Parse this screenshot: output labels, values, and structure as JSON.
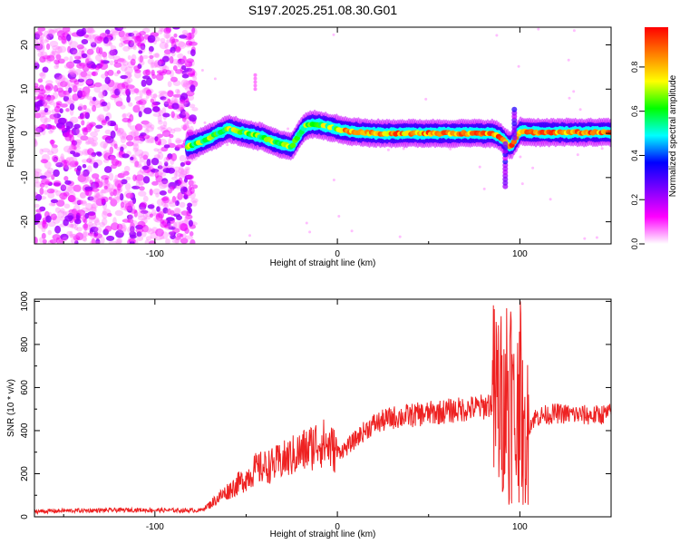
{
  "title": "S197.2025.251.08.30.G01",
  "chart_data": [
    {
      "type": "heatmap",
      "name": "spectrogram",
      "xlabel": "Height of straight line (km)",
      "ylabel": "Frequency (Hz)",
      "xlim": [
        -166,
        150
      ],
      "ylim": [
        -25,
        24
      ],
      "xticks": [
        -100,
        0,
        100
      ],
      "yticks": [
        -20,
        -10,
        0,
        10,
        20
      ],
      "noise_region_x": [
        -166,
        -78
      ],
      "signal_track": {
        "x": [
          -82,
          -75,
          -70,
          -65,
          -60,
          -55,
          -50,
          -45,
          -40,
          -35,
          -30,
          -25,
          -22,
          -18,
          -15,
          -10,
          -5,
          0,
          5,
          10,
          20,
          40,
          60,
          80,
          85,
          88,
          90,
          92,
          95,
          98,
          100,
          105,
          110,
          120,
          130,
          140,
          150
        ],
        "freq": [
          -3,
          -2,
          -1,
          0,
          1,
          0.5,
          0,
          -0.5,
          -1,
          -2,
          -2.5,
          -3,
          -1,
          1.5,
          2,
          2,
          1.5,
          1,
          0.5,
          0.3,
          0,
          0,
          0,
          0,
          0,
          -0.5,
          -1,
          -2,
          -3,
          -1,
          0.5,
          0.3,
          0.2,
          0.2,
          0.2,
          0.2,
          0.2
        ]
      },
      "colorbar": {
        "label": "Normalized spectral amplitude",
        "ticks": [
          "0.0",
          "0.2",
          "0.4",
          "0.6",
          "0.8"
        ],
        "tick_values": [
          0.0,
          0.2,
          0.4,
          0.6,
          0.8
        ],
        "range": [
          0,
          0.98
        ],
        "colors": [
          "#ffffff",
          "#ff00ff",
          "#7f00ff",
          "#0000ff",
          "#00ffff",
          "#00ff00",
          "#ffff00",
          "#ff7f00",
          "#ff0000"
        ]
      }
    },
    {
      "type": "line",
      "name": "snr",
      "xlabel": "Height of straight line (km)",
      "ylabel": "SNR (10 * v/v)",
      "xlim": [
        -166,
        150
      ],
      "ylim": [
        0,
        1010
      ],
      "xticks": [
        -100,
        0,
        100
      ],
      "yticks": [
        0,
        200,
        400,
        600,
        800,
        1000
      ],
      "color": "#ee2222",
      "series": [
        {
          "name": "SNR",
          "x": [
            -166,
            -150,
            -130,
            -110,
            -90,
            -75,
            -70,
            -65,
            -60,
            -55,
            -50,
            -45,
            -40,
            -35,
            -30,
            -25,
            -20,
            -15,
            -10,
            -5,
            0,
            5,
            10,
            15,
            20,
            30,
            40,
            50,
            60,
            70,
            80,
            85,
            88,
            92,
            95,
            98,
            100,
            102,
            105,
            108,
            112,
            120,
            130,
            140,
            150
          ],
          "y": [
            25,
            28,
            30,
            32,
            30,
            30,
            55,
            90,
            120,
            150,
            180,
            220,
            230,
            240,
            260,
            280,
            300,
            320,
            350,
            330,
            300,
            320,
            360,
            400,
            430,
            460,
            470,
            480,
            490,
            500,
            510,
            530,
            550,
            450,
            600,
            350,
            700,
            300,
            420,
            460,
            470,
            480,
            475,
            470,
            480
          ]
        }
      ]
    }
  ]
}
